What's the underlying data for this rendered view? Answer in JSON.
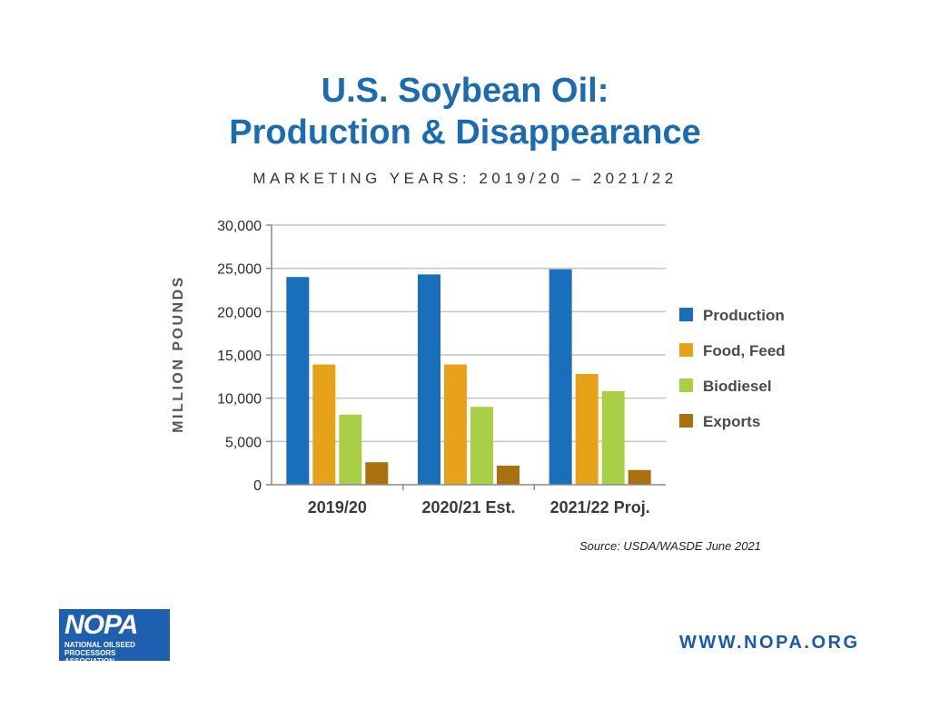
{
  "chart_data": {
    "type": "bar",
    "title": "U.S. Soybean Oil: Production & Disappearance",
    "title_lines": [
      "U.S. Soybean Oil:",
      "Production & Disappearance"
    ],
    "subtitle": "MARKETING YEARS: 2019/20 – 2021/22",
    "xlabel": "",
    "ylabel": "MILLION POUNDS",
    "ylim": [
      0,
      30000
    ],
    "yticks": [
      0,
      5000,
      10000,
      15000,
      20000,
      25000,
      30000
    ],
    "ytick_labels": [
      "0",
      "5,000",
      "10,000",
      "15,000",
      "20,000",
      "25,000",
      "30,000"
    ],
    "grid": true,
    "legend_position": "right",
    "categories": [
      "2019/20",
      "2020/21 Est.",
      "2021/22 Proj."
    ],
    "series": [
      {
        "name": "Production",
        "color": "#1a6fbd",
        "values": [
          24000,
          24300,
          24900
        ]
      },
      {
        "name": "Food, Feed",
        "color": "#e8a219",
        "values": [
          13900,
          13900,
          12800
        ]
      },
      {
        "name": "Biodiesel",
        "color": "#a8cf45",
        "values": [
          8100,
          9000,
          10800
        ]
      },
      {
        "name": "Exports",
        "color": "#a8700e",
        "values": [
          2600,
          2200,
          1700
        ]
      }
    ]
  },
  "source": "Source: USDA/WASDE June 2021",
  "logo": {
    "mark": "NOPA",
    "name": "NATIONAL OILSEED PROCESSORS ASSOCIATION"
  },
  "website": "WWW.NOPA.ORG"
}
